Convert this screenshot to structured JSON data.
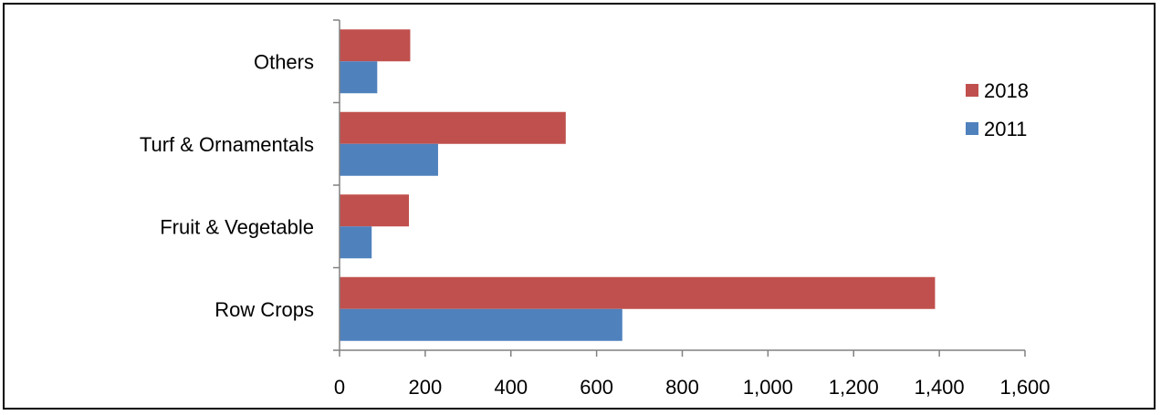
{
  "chart_data": {
    "type": "bar",
    "orientation": "horizontal",
    "categories": [
      "Row Crops",
      "Fruit & Vegetable",
      "Turf & Ornamentals",
      "Others"
    ],
    "series": [
      {
        "name": "2011",
        "color": "#4f81bd",
        "values": [
          660,
          75,
          230,
          88
        ]
      },
      {
        "name": "2018",
        "color": "#c0504d",
        "values": [
          1390,
          162,
          528,
          165
        ]
      }
    ],
    "xlim": [
      0,
      1600
    ],
    "xticks": [
      0,
      200,
      400,
      600,
      800,
      1000,
      1200,
      1400,
      1600
    ],
    "xtick_labels": [
      "0",
      "200",
      "400",
      "600",
      "800",
      "1,000",
      "1,200",
      "1,400",
      "1,600"
    ],
    "legend_order": [
      "2018",
      "2011"
    ],
    "legend_position": "right",
    "grid": false
  }
}
